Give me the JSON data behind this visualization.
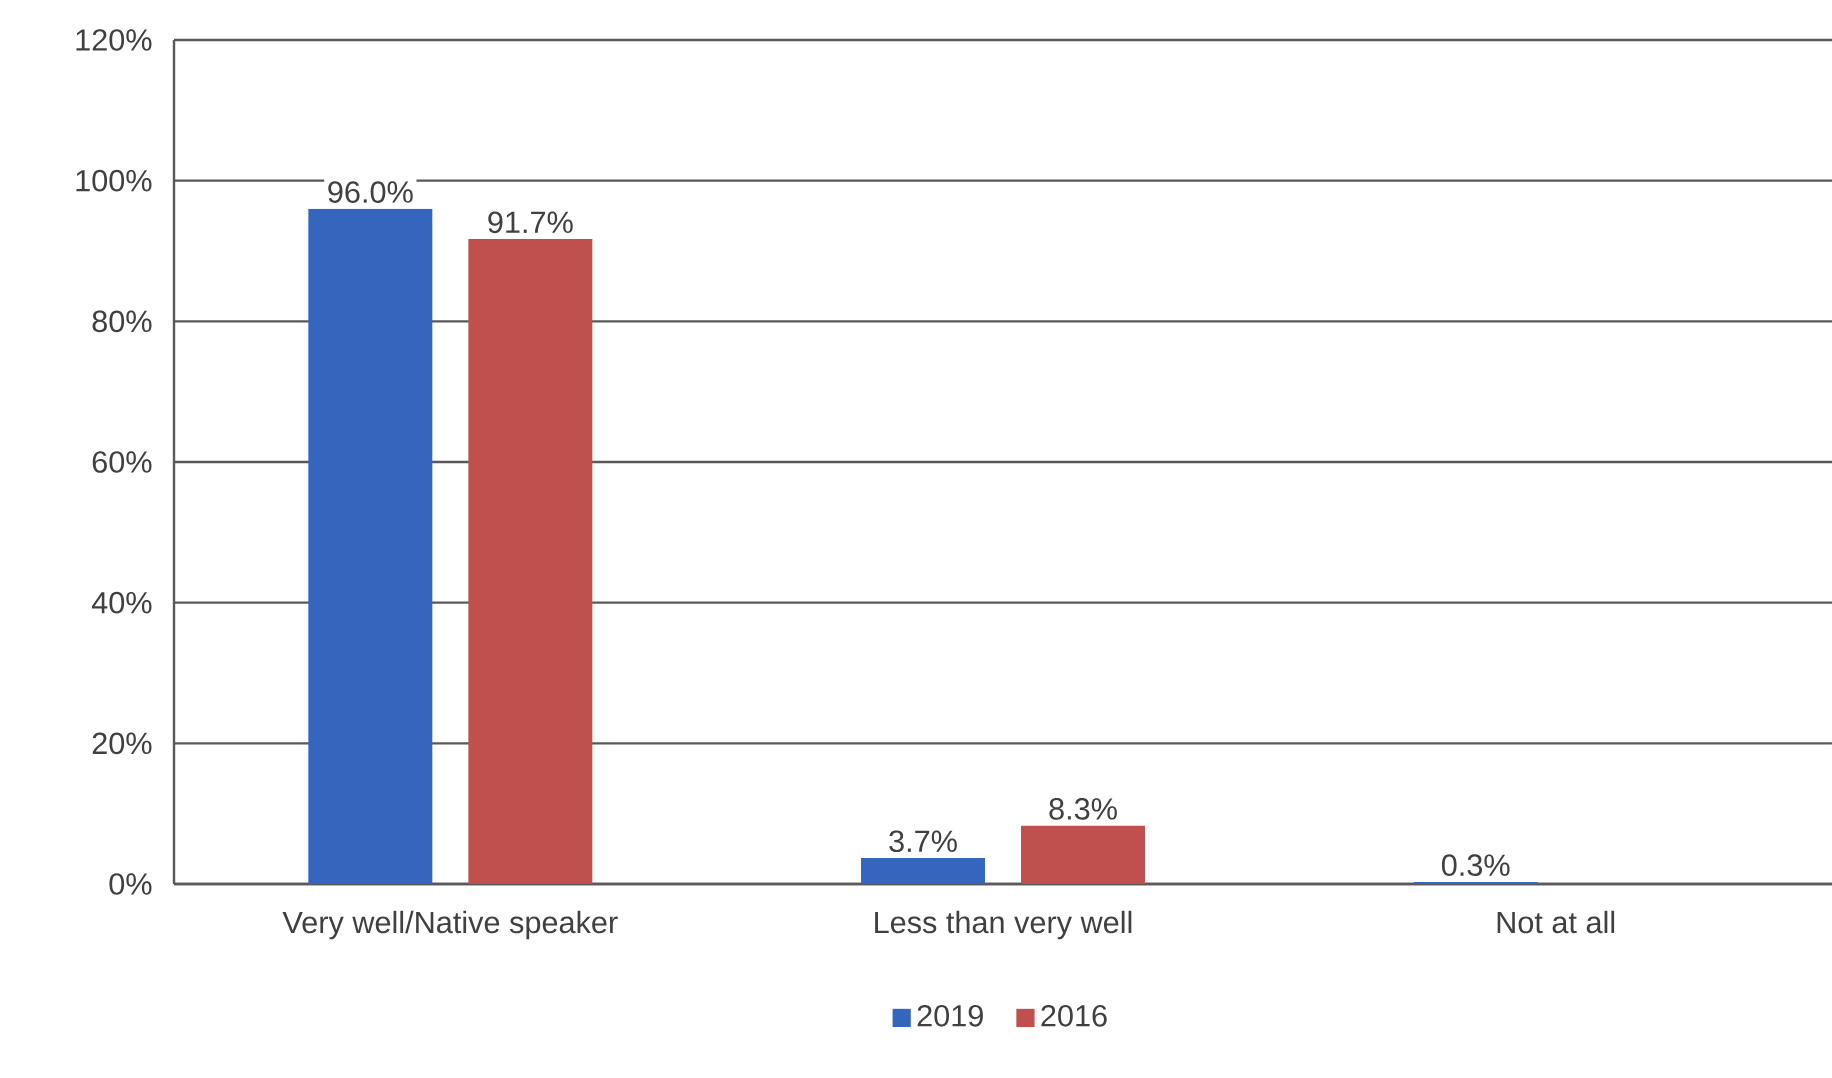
{
  "chart_data": {
    "type": "bar",
    "categories": [
      "Very well/Native speaker",
      "Less than very well",
      "Not at all"
    ],
    "series": [
      {
        "name": "2019",
        "color": "#3566be",
        "values": [
          96.0,
          3.7,
          0.3
        ],
        "value_labels": [
          "96.0%",
          "3.7%",
          "0.3%"
        ]
      },
      {
        "name": "2016",
        "color": "#c0504d",
        "values": [
          91.7,
          8.3,
          null
        ],
        "value_labels": [
          "91.7%",
          "8.3%",
          null
        ]
      }
    ],
    "ylim": [
      0,
      120
    ],
    "yticks": [
      {
        "value": 0,
        "label": "0%"
      },
      {
        "value": 20,
        "label": "20%"
      },
      {
        "value": 40,
        "label": "40%"
      },
      {
        "value": 60,
        "label": "60%"
      },
      {
        "value": 80,
        "label": "80%"
      },
      {
        "value": 100,
        "label": "100%"
      },
      {
        "value": 120,
        "label": "120%"
      }
    ],
    "grid": "y",
    "legend": "bottom"
  }
}
